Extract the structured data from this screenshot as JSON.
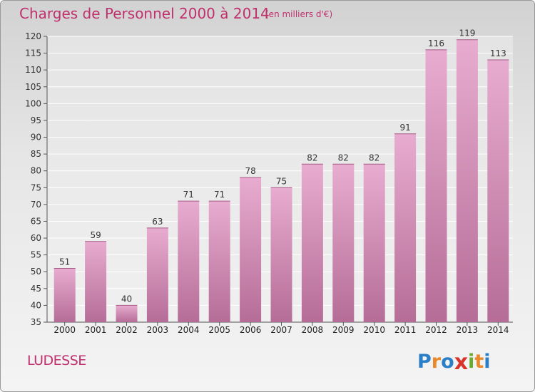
{
  "title": "Charges de Personnel 2000 à 2014",
  "subtitle": "(en milliers d'€)",
  "commune": "LUDESSE",
  "logo": {
    "letters": [
      "P",
      "r",
      "o",
      "x",
      "i",
      "t",
      "i"
    ],
    "colors": [
      "#2a7fc9",
      "#e9892b",
      "#2a7fc9",
      "#d9342b",
      "#6aac2e",
      "#e9892b",
      "#2a7fc9"
    ]
  },
  "colors": {
    "bar_light": "#e8acd0",
    "bar_dark": "#b8709a",
    "title": "#c0306d"
  },
  "chart_data": {
    "type": "bar",
    "title": "Charges de Personnel 2000 à 2014",
    "subtitle": "(en milliers d'€)",
    "categories": [
      "2000",
      "2001",
      "2002",
      "2003",
      "2004",
      "2005",
      "2006",
      "2007",
      "2008",
      "2009",
      "2010",
      "2011",
      "2012",
      "2013",
      "2014"
    ],
    "values": [
      51,
      59,
      40,
      63,
      71,
      71,
      78,
      75,
      82,
      82,
      82,
      91,
      116,
      119,
      113
    ],
    "ylim": [
      35,
      120
    ],
    "yticks": [
      35,
      40,
      45,
      50,
      55,
      60,
      65,
      70,
      75,
      80,
      85,
      90,
      95,
      100,
      105,
      110,
      115,
      120
    ],
    "grid": true
  }
}
